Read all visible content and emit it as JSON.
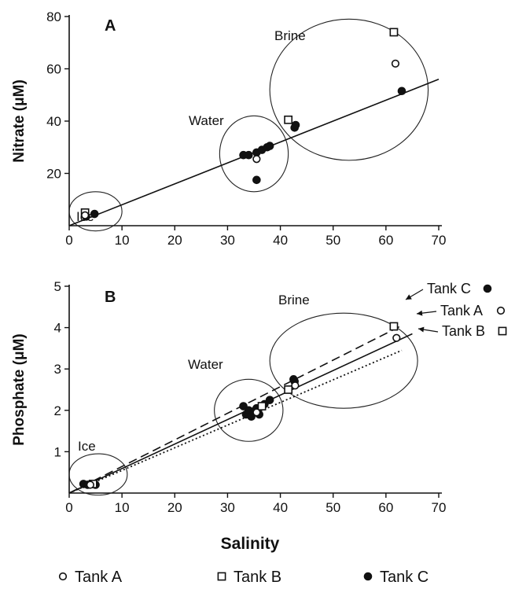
{
  "chart_data": [
    {
      "type": "scatter",
      "panel_label": "A",
      "xlim": [
        0,
        70
      ],
      "ylim": [
        0,
        80
      ],
      "x_ticks": [
        0,
        10,
        20,
        30,
        40,
        50,
        60,
        70
      ],
      "y_ticks": [
        20,
        40,
        60,
        80
      ],
      "xlabel": "",
      "ylabel": "Nitrate (μM)",
      "grid": false,
      "series": [
        {
          "name": "Tank A",
          "marker": "open-circle",
          "points": [
            [
              3,
              4
            ],
            [
              35.5,
              25.5
            ],
            [
              61.8,
              62
            ]
          ]
        },
        {
          "name": "Tank B",
          "marker": "open-square",
          "points": [
            [
              3,
              5
            ],
            [
              41.5,
              40.5
            ],
            [
              61.5,
              74
            ]
          ]
        },
        {
          "name": "Tank C",
          "marker": "filled-circle",
          "points": [
            [
              3.2,
              3.5
            ],
            [
              4.8,
              4.5
            ],
            [
              33,
              27
            ],
            [
              34,
              27
            ],
            [
              35.5,
              28
            ],
            [
              36.5,
              29
            ],
            [
              37.5,
              30
            ],
            [
              38,
              30.5
            ],
            [
              35.5,
              17.5
            ],
            [
              42.7,
              37.5
            ],
            [
              42.9,
              38.5
            ],
            [
              63,
              51.5
            ]
          ]
        }
      ],
      "regression_lines": [
        {
          "style": "solid",
          "from": [
            0,
            0
          ],
          "to": [
            70,
            56
          ]
        }
      ],
      "group_labels": [
        {
          "text": "Ice",
          "ellipse": {
            "cx": 5,
            "cy": 5.5,
            "rx": 5,
            "ry": 7.5
          }
        },
        {
          "text": "Water",
          "ellipse": {
            "cx": 35,
            "cy": 27.5,
            "rx": 6.5,
            "ry": 14.5
          }
        },
        {
          "text": "Brine",
          "ellipse": {
            "cx": 53,
            "cy": 52,
            "rx": 15,
            "ry": 27
          }
        }
      ]
    },
    {
      "type": "scatter",
      "panel_label": "B",
      "xlim": [
        0,
        70
      ],
      "ylim": [
        0,
        5
      ],
      "x_ticks": [
        0,
        10,
        20,
        30,
        40,
        50,
        60,
        70
      ],
      "y_ticks": [
        1,
        2,
        3,
        4,
        5
      ],
      "xlabel": "Salinity",
      "ylabel": "Phosphate (μM)",
      "grid": false,
      "series": [
        {
          "name": "Tank A",
          "marker": "open-circle",
          "points": [
            [
              4,
              0.2
            ],
            [
              35.5,
              1.95
            ],
            [
              42.8,
              2.6
            ],
            [
              62,
              3.75
            ]
          ]
        },
        {
          "name": "Tank B",
          "marker": "open-square",
          "points": [
            [
              4.5,
              0.22
            ],
            [
              36.5,
              2.1
            ],
            [
              41.5,
              2.5
            ],
            [
              61.5,
              4.03
            ]
          ]
        },
        {
          "name": "Tank C",
          "marker": "filled-circle",
          "points": [
            [
              2.7,
              0.22
            ],
            [
              3.5,
              0.2
            ],
            [
              5,
              0.2
            ],
            [
              33,
              2.1
            ],
            [
              33.5,
              1.9
            ],
            [
              34,
              2.0
            ],
            [
              34.5,
              1.85
            ],
            [
              35,
              1.95
            ],
            [
              35.5,
              2.05
            ],
            [
              36,
              1.9
            ],
            [
              37,
              2.15
            ],
            [
              38,
              2.25
            ],
            [
              42.5,
              2.75
            ],
            [
              42.7,
              2.7
            ]
          ]
        }
      ],
      "regression_lines": [
        {
          "series": "Tank C",
          "style": "dashed",
          "from": [
            0,
            0
          ],
          "to": [
            63,
            4.05
          ]
        },
        {
          "series": "Tank A",
          "style": "solid",
          "from": [
            0,
            0
          ],
          "to": [
            65,
            3.85
          ]
        },
        {
          "series": "Tank B",
          "style": "dotted",
          "from": [
            0,
            0
          ],
          "to": [
            63,
            3.45
          ]
        }
      ],
      "group_labels": [
        {
          "text": "Ice",
          "ellipse": {
            "cx": 5.5,
            "cy": 0.45,
            "rx": 5.5,
            "ry": 0.5
          }
        },
        {
          "text": "Water",
          "ellipse": {
            "cx": 34,
            "cy": 2.0,
            "rx": 6.5,
            "ry": 0.75
          }
        },
        {
          "text": "Brine",
          "ellipse": {
            "cx": 52,
            "cy": 3.2,
            "rx": 14,
            "ry": 1.15
          }
        }
      ],
      "line_labels": [
        {
          "text": "Tank C",
          "marker": "filled-circle"
        },
        {
          "text": "Tank A",
          "marker": "open-circle"
        },
        {
          "text": "Tank B",
          "marker": "open-square"
        }
      ]
    }
  ],
  "legend": [
    {
      "label": "Tank A",
      "marker": "open-circle"
    },
    {
      "label": "Tank B",
      "marker": "open-square"
    },
    {
      "label": "Tank C",
      "marker": "filled-circle"
    }
  ]
}
